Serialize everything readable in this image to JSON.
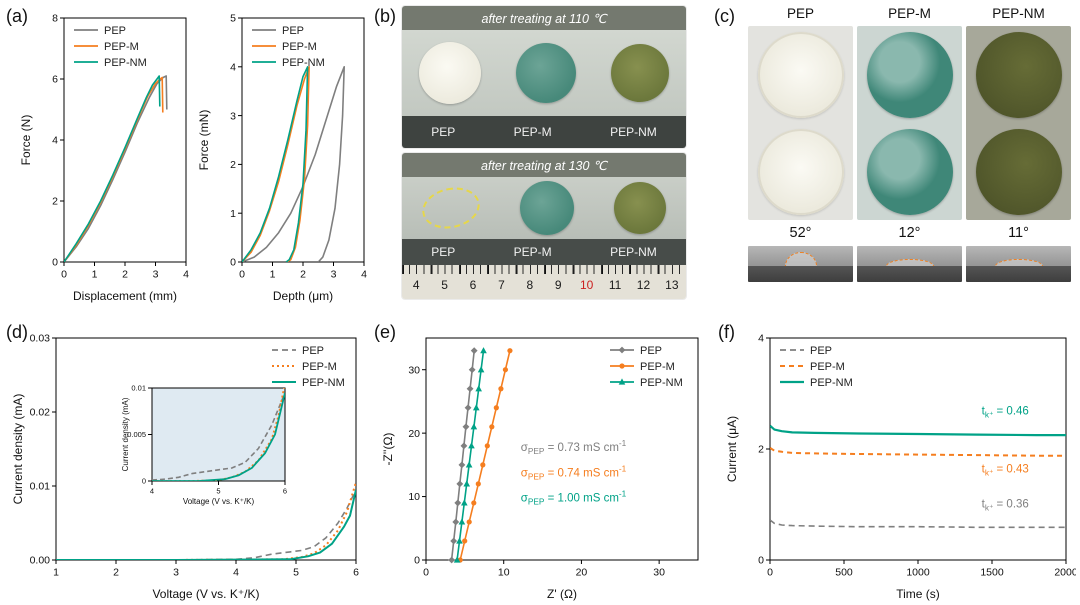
{
  "colors": {
    "pep": "#7f7f7f",
    "pepm": "#f57e1f",
    "pepnm": "#00a287",
    "accent_dash": "#e6d74a",
    "droplet_arc": "#f08020"
  },
  "panels": {
    "a": {
      "label": "(a)"
    },
    "b": {
      "label": "(b)",
      "photo1_title": "after treating at 110 ℃",
      "photo2_title": "after treating at 130 ℃",
      "sample_labels": [
        "PEP",
        "PEP-M",
        "PEP-NM"
      ],
      "ruler_numbers": [
        "4",
        "5",
        "6",
        "7",
        "8",
        "9",
        "10",
        "11",
        "12",
        "13"
      ]
    },
    "c": {
      "label": "(c)",
      "headers": [
        "PEP",
        "PEP-M",
        "PEP-NM"
      ],
      "angles": [
        "52°",
        "12°",
        "11°"
      ]
    },
    "d": {
      "label": "(d)"
    },
    "e": {
      "label": "(e)"
    },
    "f": {
      "label": "(f)"
    }
  },
  "chart_data": [
    {
      "id": "a1",
      "type": "line",
      "title": "",
      "xlabel": "Displacement (mm)",
      "ylabel": "Force (N)",
      "xlim": [
        0,
        4
      ],
      "ylim": [
        0,
        8
      ],
      "xticks": [
        0,
        1,
        2,
        3,
        4
      ],
      "yticks": [
        0,
        2,
        4,
        6,
        8
      ],
      "legend": {
        "pos": "tl",
        "w": 70
      },
      "series": [
        {
          "name": "PEP",
          "color": "#7f7f7f",
          "x": [
            0,
            0.4,
            0.8,
            1.2,
            1.6,
            2.0,
            2.4,
            2.8,
            3.05,
            3.25,
            3.35,
            3.37
          ],
          "y": [
            0,
            0.5,
            1.1,
            1.85,
            2.7,
            3.6,
            4.55,
            5.4,
            5.85,
            6.05,
            6.1,
            5.0
          ]
        },
        {
          "name": "PEP-M",
          "color": "#f57e1f",
          "x": [
            0,
            0.4,
            0.8,
            1.2,
            1.6,
            2.0,
            2.4,
            2.75,
            3.0,
            3.15,
            3.22,
            3.24
          ],
          "y": [
            0,
            0.55,
            1.2,
            1.95,
            2.8,
            3.7,
            4.65,
            5.45,
            5.85,
            6.0,
            6.05,
            4.9
          ]
        },
        {
          "name": "PEP-NM",
          "color": "#00a287",
          "x": [
            0,
            0.4,
            0.8,
            1.2,
            1.6,
            2.0,
            2.4,
            2.7,
            2.9,
            3.05,
            3.12,
            3.14
          ],
          "y": [
            0,
            0.6,
            1.25,
            2.0,
            2.85,
            3.75,
            4.7,
            5.4,
            5.8,
            6.0,
            6.1,
            5.1
          ]
        }
      ]
    },
    {
      "id": "a2",
      "type": "line",
      "title": "",
      "xlabel": "Depth (μm)",
      "ylabel": "Force (mN)",
      "xlim": [
        0,
        4
      ],
      "ylim": [
        0,
        5
      ],
      "xticks": [
        0,
        1,
        2,
        3,
        4
      ],
      "yticks": [
        0,
        1,
        2,
        3,
        4,
        5
      ],
      "legend": {
        "pos": "tl",
        "w": 70
      },
      "series": [
        {
          "name": "PEP",
          "color": "#7f7f7f",
          "x": [
            0,
            0.4,
            0.8,
            1.2,
            1.6,
            2.0,
            2.4,
            2.8,
            3.1,
            3.35,
            3.3,
            3.2,
            3.05,
            2.85,
            2.65,
            2.5
          ],
          "y": [
            0,
            0.1,
            0.3,
            0.6,
            1.0,
            1.55,
            2.2,
            3.0,
            3.6,
            4.0,
            3.0,
            2.0,
            1.1,
            0.45,
            0.1,
            0
          ]
        },
        {
          "name": "PEP-M",
          "color": "#f57e1f",
          "x": [
            0,
            0.3,
            0.6,
            0.9,
            1.2,
            1.5,
            1.8,
            2.05,
            2.2,
            2.15,
            2.05,
            1.9,
            1.75,
            1.6,
            1.5
          ],
          "y": [
            0,
            0.2,
            0.55,
            1.05,
            1.65,
            2.4,
            3.2,
            3.75,
            4.0,
            2.8,
            1.7,
            0.85,
            0.3,
            0.05,
            0
          ]
        },
        {
          "name": "PEP-NM",
          "color": "#00a287",
          "x": [
            0,
            0.3,
            0.6,
            0.9,
            1.2,
            1.5,
            1.8,
            2.0,
            2.15,
            2.1,
            2.0,
            1.85,
            1.7,
            1.55,
            1.45
          ],
          "y": [
            0,
            0.25,
            0.6,
            1.1,
            1.75,
            2.5,
            3.3,
            3.8,
            4.0,
            2.7,
            1.6,
            0.8,
            0.25,
            0.05,
            0
          ]
        }
      ]
    },
    {
      "id": "d",
      "type": "line",
      "title": "",
      "xlabel": "Voltage (V vs. K⁺/K)",
      "ylabel": "Current density (mA)",
      "xlim": [
        1,
        6
      ],
      "ylim": [
        0,
        0.03
      ],
      "xticks": [
        1,
        2,
        3,
        4,
        5,
        6
      ],
      "yticks": [
        0,
        0.01,
        0.02,
        0.03
      ],
      "ytick_labels": [
        "0.00",
        "0.01",
        "0.02",
        "0.03"
      ],
      "legend": {
        "pos": "tr",
        "w": 84
      },
      "series": [
        {
          "name": "PEP",
          "color": "#7f7f7f",
          "dash": "6,4",
          "x": [
            1,
            2,
            3,
            4,
            4.3,
            4.6,
            4.9,
            5.1,
            5.3,
            5.5,
            5.7,
            5.85,
            6
          ],
          "y": [
            0,
            0,
            0,
            0.0001,
            0.0003,
            0.0008,
            0.0011,
            0.0013,
            0.0018,
            0.003,
            0.005,
            0.007,
            0.0095
          ]
        },
        {
          "name": "PEP-M",
          "color": "#f57e1f",
          "dash": "2,3",
          "w": 2,
          "x": [
            1,
            3,
            4.8,
            5.1,
            5.3,
            5.5,
            5.7,
            5.85,
            6
          ],
          "y": [
            0,
            0,
            0.0001,
            0.0004,
            0.0009,
            0.002,
            0.004,
            0.0065,
            0.0105
          ]
        },
        {
          "name": "PEP-NM",
          "color": "#00a287",
          "w": 2,
          "x": [
            1,
            3,
            4.9,
            5.2,
            5.4,
            5.6,
            5.8,
            5.9,
            6
          ],
          "y": [
            0,
            0,
            0.0001,
            0.0005,
            0.001,
            0.0022,
            0.0045,
            0.006,
            0.0095
          ]
        }
      ]
    },
    {
      "id": "d_inset",
      "type": "line",
      "title": "",
      "xlabel": "Voltage (V vs. K⁺/K)",
      "ylabel": "Current density (mA)",
      "bg": "#dfeaf2",
      "margins": {
        "l": 32,
        "r": 7,
        "t": 6,
        "b": 27
      },
      "fs": {
        "tick": 7.5,
        "label": 8,
        "legend": 8,
        "ann": 8
      },
      "xlim": [
        4,
        6
      ],
      "ylim": [
        0,
        0.01
      ],
      "xticks": [
        4,
        5,
        6
      ],
      "yticks": [
        0,
        0.005,
        0.01
      ],
      "ytick_labels": [
        "0",
        "0.005",
        "0.01"
      ],
      "series": [
        {
          "name": "PEP",
          "color": "#7f7f7f",
          "dash": "5,3",
          "x": [
            4,
            4.2,
            4.4,
            4.6,
            4.8,
            5.0,
            5.2,
            5.4,
            5.6,
            5.8,
            6
          ],
          "y": [
            0.0001,
            0.0002,
            0.0004,
            0.0008,
            0.001,
            0.0012,
            0.0014,
            0.002,
            0.0035,
            0.006,
            0.0095
          ]
        },
        {
          "name": "PEP-M",
          "color": "#f57e1f",
          "dash": "2,2.5",
          "w": 1.8,
          "x": [
            4,
            4.6,
            5.0,
            5.2,
            5.4,
            5.6,
            5.8,
            5.9,
            6
          ],
          "y": [
            0,
            0,
            0.0001,
            0.0004,
            0.001,
            0.0022,
            0.0045,
            0.007,
            0.0105
          ]
        },
        {
          "name": "PEP-NM",
          "color": "#00a287",
          "w": 1.8,
          "x": [
            4,
            4.7,
            5.1,
            5.3,
            5.5,
            5.7,
            5.85,
            6
          ],
          "y": [
            0,
            0,
            0.0002,
            0.0006,
            0.0014,
            0.003,
            0.005,
            0.0095
          ]
        }
      ]
    },
    {
      "id": "e",
      "type": "scatter",
      "title": "",
      "xlabel": "Z' (Ω)",
      "ylabel": "-Z''(Ω)",
      "xlim": [
        0,
        35
      ],
      "ylim": [
        0,
        35
      ],
      "xticks": [
        0,
        10,
        20,
        30
      ],
      "yticks": [
        0,
        10,
        20,
        30
      ],
      "legend": {
        "pos": "tr",
        "w": 88
      },
      "series": [
        {
          "name": "PEP",
          "color": "#7f7f7f",
          "marker": "diamond",
          "x": [
            3.3,
            3.56,
            3.83,
            4.09,
            4.35,
            4.62,
            4.88,
            5.14,
            5.41,
            5.67,
            5.94,
            6.2
          ],
          "y": [
            0,
            3,
            6,
            9,
            12,
            15,
            18,
            21,
            24,
            27,
            30,
            33
          ]
        },
        {
          "name": "PEP-M",
          "color": "#f57e1f",
          "marker": "circle",
          "x": [
            4.4,
            4.98,
            5.56,
            6.15,
            6.73,
            7.31,
            7.89,
            8.47,
            9.05,
            9.64,
            10.22,
            10.8
          ],
          "y": [
            0,
            3,
            6,
            9,
            12,
            15,
            18,
            21,
            24,
            27,
            30,
            33
          ]
        },
        {
          "name": "PEP-NM",
          "color": "#00a287",
          "marker": "triangle",
          "x": [
            4.0,
            4.31,
            4.62,
            4.93,
            5.24,
            5.55,
            5.85,
            6.16,
            6.47,
            6.78,
            7.09,
            7.4
          ],
          "y": [
            0,
            3,
            6,
            9,
            12,
            15,
            18,
            21,
            24,
            27,
            30,
            33
          ]
        }
      ],
      "annotations": [
        {
          "x": 12.2,
          "y": 17.2,
          "color": "#7f7f7f",
          "segments": [
            {
              "t": "σ"
            },
            {
              "t": "PEP",
              "sub": true
            },
            {
              "t": " = 0.73 mS cm"
            },
            {
              "t": "-1",
              "sup": true
            }
          ]
        },
        {
          "x": 12.2,
          "y": 13.2,
          "color": "#f57e1f",
          "segments": [
            {
              "t": "σ"
            },
            {
              "t": "PEP",
              "sub": true
            },
            {
              "t": " = 0.74 mS cm"
            },
            {
              "t": "-1",
              "sup": true
            }
          ]
        },
        {
          "x": 12.2,
          "y": 9.2,
          "color": "#00a287",
          "segments": [
            {
              "t": "σ"
            },
            {
              "t": "PEP",
              "sub": true
            },
            {
              "t": " = 1.00 mS cm"
            },
            {
              "t": "-1",
              "sup": true
            }
          ]
        }
      ]
    },
    {
      "id": "f",
      "type": "line",
      "title": "",
      "xlabel": "Time (s)",
      "ylabel": "Current (μA)",
      "xlim": [
        0,
        2000
      ],
      "ylim": [
        0,
        4
      ],
      "xticks": [
        0,
        500,
        1000,
        1500,
        2000
      ],
      "yticks": [
        0,
        2,
        4
      ],
      "legend": {
        "pos": "tl",
        "w": 86
      },
      "series": [
        {
          "name": "PEP",
          "color": "#7f7f7f",
          "dash": "6,4",
          "x": [
            0,
            30,
            80,
            150,
            300,
            600,
            1000,
            1400,
            1800,
            2000
          ],
          "y": [
            0.72,
            0.66,
            0.63,
            0.62,
            0.61,
            0.6,
            0.6,
            0.59,
            0.59,
            0.59
          ]
        },
        {
          "name": "PEP-M",
          "color": "#f57e1f",
          "dash": "5,4",
          "w": 2,
          "x": [
            0,
            30,
            80,
            150,
            300,
            600,
            1000,
            1400,
            1800,
            2000
          ],
          "y": [
            2.02,
            1.97,
            1.95,
            1.93,
            1.92,
            1.91,
            1.9,
            1.89,
            1.88,
            1.88
          ]
        },
        {
          "name": "PEP-NM",
          "color": "#00a287",
          "w": 2.2,
          "x": [
            0,
            30,
            80,
            150,
            300,
            600,
            1000,
            1400,
            1800,
            2000
          ],
          "y": [
            2.42,
            2.35,
            2.32,
            2.3,
            2.29,
            2.28,
            2.27,
            2.26,
            2.25,
            2.25
          ]
        }
      ],
      "annotations": [
        {
          "x": 1430,
          "y": 2.62,
          "color": "#00a287",
          "segments": [
            {
              "t": "t"
            },
            {
              "t": "k⁺",
              "sub": true
            },
            {
              "t": " = 0.46"
            }
          ]
        },
        {
          "x": 1430,
          "y": 1.58,
          "color": "#f57e1f",
          "segments": [
            {
              "t": "t"
            },
            {
              "t": "k⁺",
              "sub": true
            },
            {
              "t": " = 0.43"
            }
          ]
        },
        {
          "x": 1430,
          "y": 0.95,
          "color": "#7f7f7f",
          "segments": [
            {
              "t": "t"
            },
            {
              "t": "k⁺",
              "sub": true
            },
            {
              "t": " = 0.36"
            }
          ]
        }
      ]
    }
  ]
}
